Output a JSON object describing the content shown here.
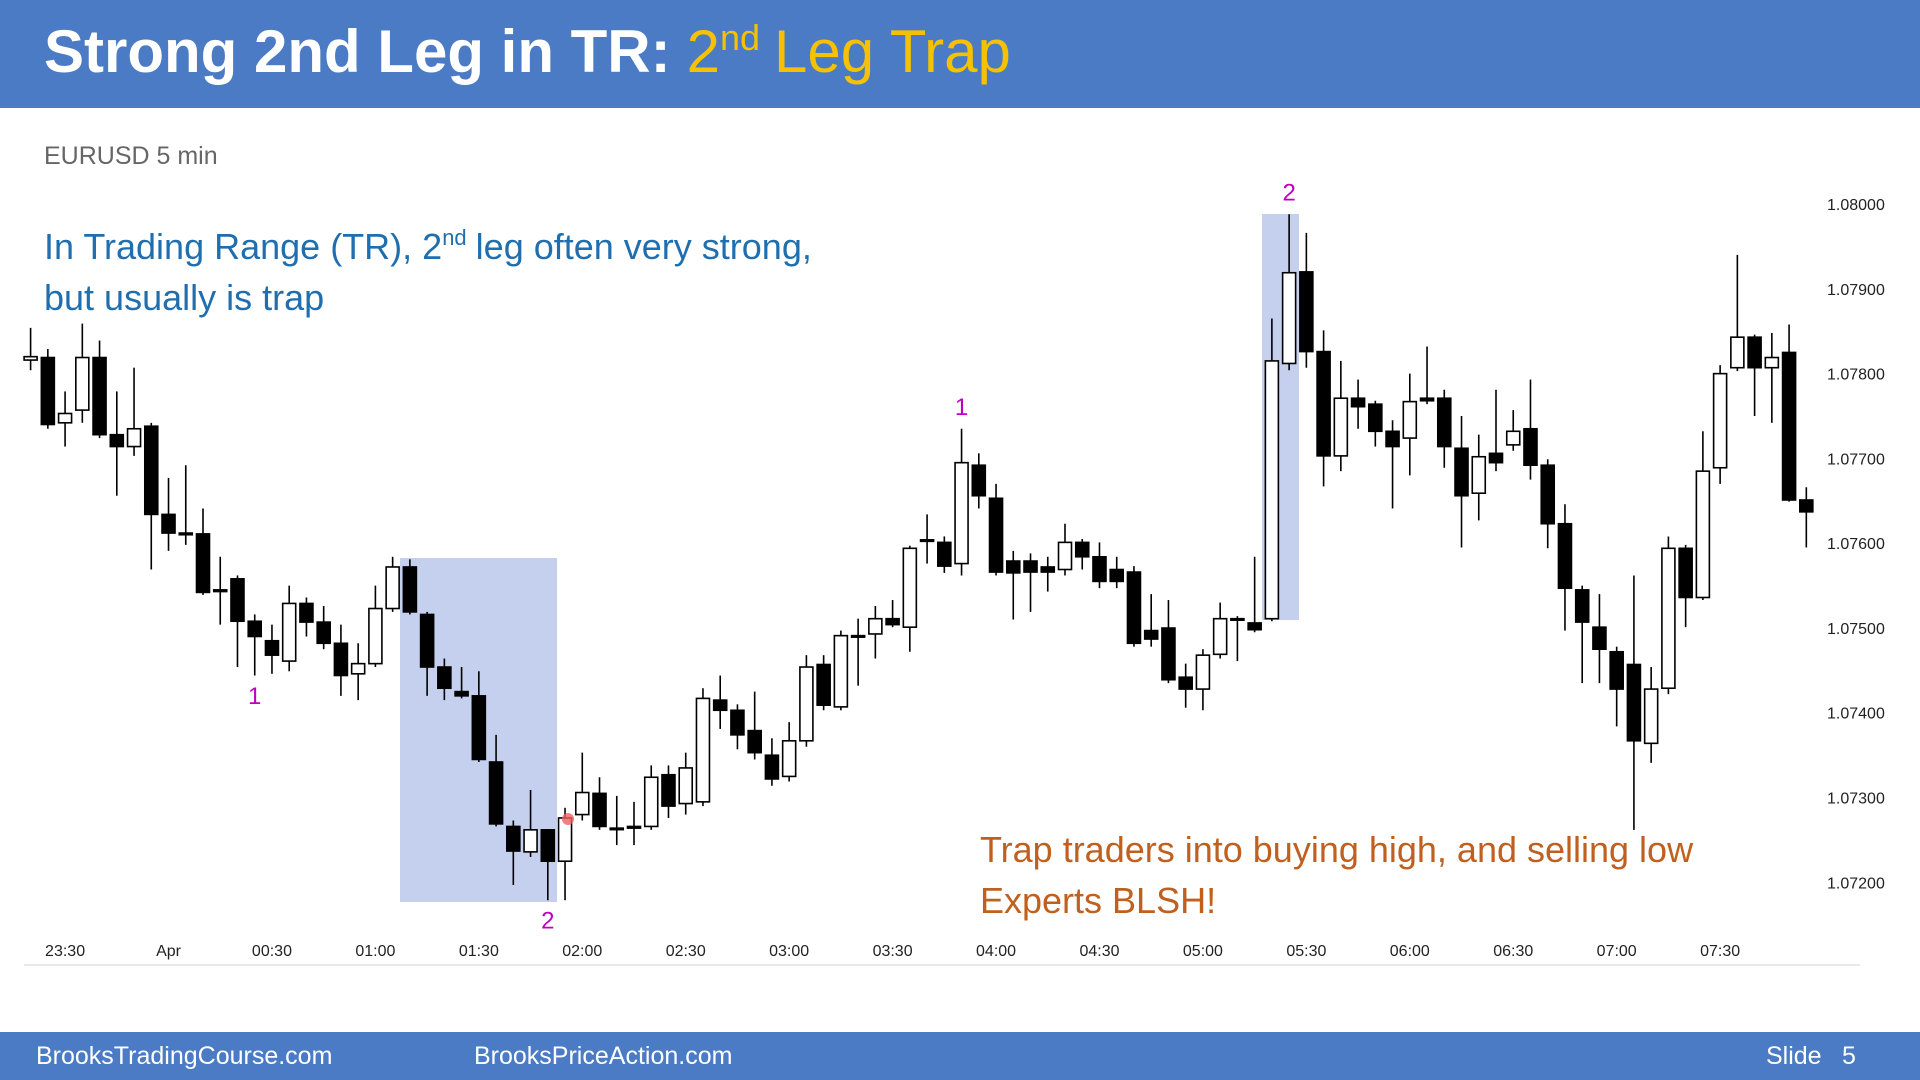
{
  "header": {
    "title": "Strong 2nd Leg in TR:",
    "accent": [
      "2",
      "nd",
      "Leg Trap"
    ]
  },
  "chart_data": {
    "type": "candlestick",
    "subtitle": "EURUSD 5 min",
    "annotations": [
      {
        "lines": [
          [
            "In Trading Range (TR), 2",
            "nd",
            "leg often very strong,"
          ],
          [
            "but usually is trap"
          ]
        ],
        "color": "#1f6fb0"
      },
      {
        "lines": [
          [
            "Trap traders into buying high, and selling low"
          ],
          [
            "Experts BLSH!"
          ]
        ],
        "color": "#c0601f"
      }
    ],
    "leg_labels": [
      "1",
      "2",
      "1",
      "2"
    ],
    "leg_label_color": "#c000c0",
    "up_color": "#ffffff",
    "down_color": "#000000",
    "grid": false,
    "categories": [
      null,
      null,
      "23:30",
      null,
      null,
      null,
      null,
      null,
      "Apr",
      null,
      null,
      null,
      null,
      null,
      "00:30",
      null,
      null,
      null,
      null,
      null,
      "01:00",
      null,
      null,
      null,
      null,
      null,
      "01:30",
      null,
      null,
      null,
      null,
      null,
      "02:00",
      null,
      null,
      null,
      null,
      null,
      "02:30",
      null,
      null,
      null,
      null,
      null,
      "03:00",
      null,
      null,
      null,
      null,
      null,
      "03:30",
      null,
      null,
      null,
      null,
      null,
      "04:00",
      null,
      null,
      null,
      null,
      null,
      "04:30",
      null,
      null,
      null,
      null,
      null,
      "05:00",
      null,
      null,
      null,
      null,
      null,
      "05:30",
      null,
      null,
      null,
      null,
      null,
      "06:00",
      null,
      null,
      null,
      null,
      null,
      "06:30",
      null,
      null,
      null,
      null,
      null,
      "07:00",
      null,
      null,
      null,
      null,
      null,
      "07:30",
      null,
      null,
      null,
      null,
      null
    ],
    "open": [
      1.07818,
      1.07821,
      1.07744,
      1.07759,
      1.07821,
      1.0773,
      1.07716,
      1.0774,
      1.07636,
      1.07614,
      1.07613,
      1.07547,
      1.0756,
      1.0751,
      1.07487,
      1.07463,
      1.07531,
      1.07509,
      1.07484,
      1.07448,
      1.0746,
      1.07525,
      1.07574,
      1.07518,
      1.07456,
      1.07427,
      1.07422,
      1.07344,
      1.07268,
      1.07238,
      1.07264,
      1.07227,
      1.07282,
      1.07307,
      1.07266,
      1.07268,
      1.07268,
      1.07329,
      1.07295,
      1.07297,
      1.07417,
      1.07405,
      1.07381,
      1.07352,
      1.07327,
      1.07369,
      1.07459,
      1.07409,
      1.07493,
      1.07495,
      1.07513,
      1.07503,
      1.07606,
      1.07603,
      1.07578,
      1.07694,
      1.07655,
      1.07581,
      1.07581,
      1.07574,
      1.07571,
      1.07603,
      1.07586,
      1.07571,
      1.07568,
      1.07499,
      1.07502,
      1.07444,
      1.0743,
      1.07471,
      1.07513,
      1.07508,
      1.07513,
      1.07814,
      1.07922,
      1.07828,
      1.07705,
      1.07773,
      1.07766,
      1.07734,
      1.07726,
      1.07773,
      1.07773,
      1.07714,
      1.07661,
      1.07708,
      1.07718,
      1.07737,
      1.07694,
      1.07625,
      1.07547,
      1.07503,
      1.07474,
      1.07459,
      1.07366,
      1.07431,
      1.07596,
      1.07538,
      1.07691,
      1.07809,
      1.07845,
      1.07809,
      1.07827,
      1.07653
    ],
    "high": [
      1.07856,
      1.07831,
      1.07781,
      1.07861,
      1.07841,
      1.07781,
      1.07809,
      1.07744,
      1.07679,
      1.07694,
      1.07643,
      1.07586,
      1.07564,
      1.07518,
      1.07506,
      1.07552,
      1.07538,
      1.07528,
      1.07506,
      1.07484,
      1.07552,
      1.07586,
      1.07583,
      1.07521,
      1.07466,
      1.07456,
      1.07451,
      1.07376,
      1.07275,
      1.07311,
      1.07265,
      1.0729,
      1.07355,
      1.07326,
      1.07304,
      1.07297,
      1.0734,
      1.0734,
      1.07355,
      1.07431,
      1.07446,
      1.07412,
      1.07427,
      1.07372,
      1.07391,
      1.0747,
      1.0747,
      1.07499,
      1.07513,
      1.07528,
      1.07535,
      1.07599,
      1.07636,
      1.0761,
      1.07737,
      1.07708,
      1.07672,
      1.07593,
      1.0759,
      1.07586,
      1.07625,
      1.07607,
      1.07603,
      1.07586,
      1.07575,
      1.07542,
      1.07535,
      1.0746,
      1.07477,
      1.07532,
      1.07516,
      1.07586,
      1.07867,
      1.0799,
      1.07968,
      1.07853,
      1.07817,
      1.07795,
      1.0777,
      1.07747,
      1.07802,
      1.07834,
      1.07783,
      1.07752,
      1.0773,
      1.07783,
      1.07759,
      1.07795,
      1.07701,
      1.07648,
      1.07552,
      1.07542,
      1.0748,
      1.07564,
      1.07456,
      1.0761,
      1.076,
      1.07734,
      1.07812,
      1.07942,
      1.07848,
      1.0785,
      1.0786,
      1.07668
    ],
    "low": [
      1.07806,
      1.07737,
      1.07716,
      1.07744,
      1.07726,
      1.07658,
      1.07705,
      1.07571,
      1.07593,
      1.076,
      1.07541,
      1.07506,
      1.07456,
      1.07446,
      1.07448,
      1.07451,
      1.07492,
      1.07477,
      1.07422,
      1.07417,
      1.07456,
      1.07521,
      1.07518,
      1.07422,
      1.07417,
      1.07419,
      1.07344,
      1.07268,
      1.07199,
      1.07232,
      1.07181,
      1.07181,
      1.07275,
      1.07264,
      1.07246,
      1.07246,
      1.07264,
      1.07278,
      1.07282,
      1.07292,
      1.07383,
      1.07359,
      1.07347,
      1.07316,
      1.07321,
      1.07362,
      1.07405,
      1.07405,
      1.07434,
      1.07466,
      1.07503,
      1.07474,
      1.07578,
      1.07567,
      1.07564,
      1.07643,
      1.07564,
      1.07512,
      1.07521,
      1.07545,
      1.07564,
      1.07571,
      1.07549,
      1.07549,
      1.0748,
      1.0748,
      1.07437,
      1.07408,
      1.07405,
      1.07466,
      1.07463,
      1.07497,
      1.0751,
      1.07806,
      1.07809,
      1.07669,
      1.07687,
      1.07737,
      1.07716,
      1.07643,
      1.07682,
      1.07766,
      1.07691,
      1.07597,
      1.07629,
      1.07687,
      1.07711,
      1.07677,
      1.07596,
      1.07499,
      1.07437,
      1.07437,
      1.07386,
      1.07264,
      1.07343,
      1.07424,
      1.07503,
      1.07535,
      1.07672,
      1.07805,
      1.07752,
      1.07744,
      1.07651,
      1.07597
    ],
    "close": [
      1.07822,
      1.07742,
      1.07755,
      1.07821,
      1.0773,
      1.07716,
      1.07737,
      1.07636,
      1.07614,
      1.07612,
      1.07544,
      1.07545,
      1.0751,
      1.07492,
      1.0747,
      1.07531,
      1.07509,
      1.07484,
      1.07446,
      1.0746,
      1.07525,
      1.07574,
      1.07521,
      1.07456,
      1.07431,
      1.07422,
      1.07347,
      1.07271,
      1.07239,
      1.07264,
      1.07227,
      1.07278,
      1.07308,
      1.07268,
      1.07266,
      1.07266,
      1.07326,
      1.07292,
      1.07337,
      1.07419,
      1.07405,
      1.07376,
      1.07355,
      1.07324,
      1.07369,
      1.07456,
      1.07411,
      1.07493,
      1.07493,
      1.07513,
      1.07506,
      1.07596,
      1.07606,
      1.07575,
      1.07697,
      1.07658,
      1.07568,
      1.07567,
      1.07568,
      1.07568,
      1.07603,
      1.07586,
      1.07557,
      1.07557,
      1.07484,
      1.07489,
      1.07441,
      1.0743,
      1.0747,
      1.07513,
      1.07513,
      1.075,
      1.07817,
      1.07921,
      1.07828,
      1.07705,
      1.07773,
      1.07763,
      1.07734,
      1.07716,
      1.07769,
      1.0777,
      1.07716,
      1.07658,
      1.07704,
      1.07697,
      1.07734,
      1.07694,
      1.07625,
      1.07549,
      1.07509,
      1.07477,
      1.0743,
      1.07369,
      1.0743,
      1.07596,
      1.07538,
      1.07687,
      1.07802,
      1.07845,
      1.07809,
      1.07821,
      1.07653,
      1.07639
    ],
    "ylim": [
      1.0715,
      1.0803
    ],
    "yticks": [
      {
        "value": 1.072,
        "label": "1.07200"
      },
      {
        "value": 1.073,
        "label": "1.07300"
      },
      {
        "value": 1.074,
        "label": "1.07400"
      },
      {
        "value": 1.075,
        "label": "1.07500"
      },
      {
        "value": 1.076,
        "label": "1.07600"
      },
      {
        "value": 1.077,
        "label": "1.07700"
      },
      {
        "value": 1.078,
        "label": "1.07800"
      },
      {
        "value": 1.079,
        "label": "1.07900"
      },
      {
        "value": 1.08,
        "label": "1.08000"
      }
    ]
  },
  "footer": {
    "left": "BrooksTradingCourse.com",
    "middle": "BrooksPriceAction.com",
    "slide": "Slide",
    "number": "5"
  }
}
